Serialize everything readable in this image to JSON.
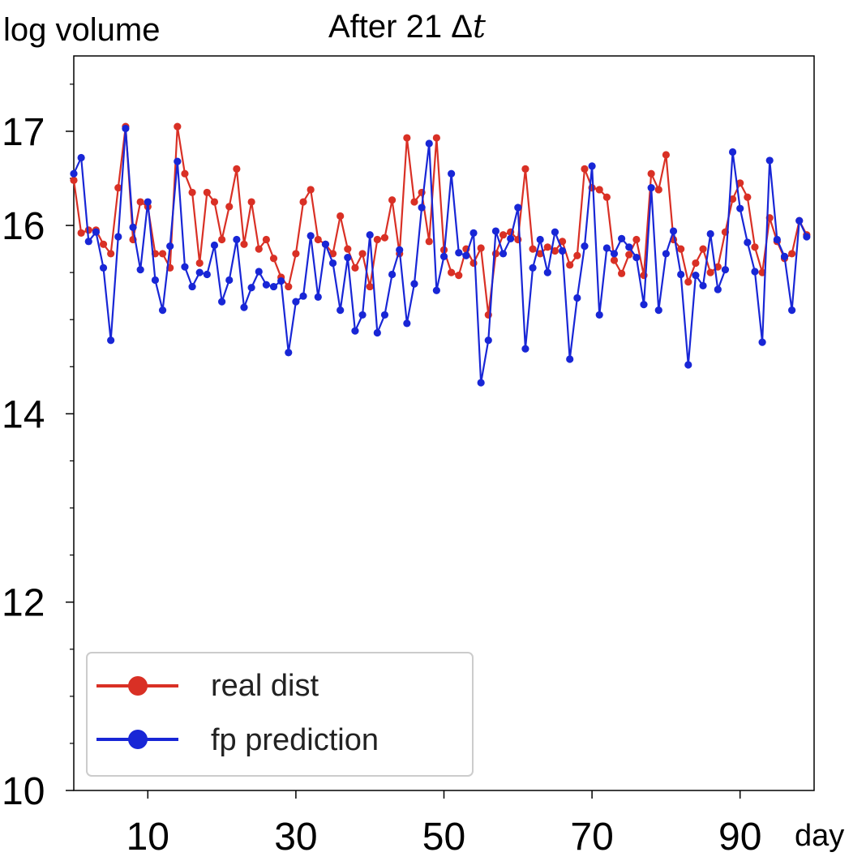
{
  "chart_data": {
    "type": "line",
    "title_prefix": "After 21 ",
    "title_symbol": "Δ",
    "title_var": "t",
    "ylabel": "log volume",
    "xlabel": "day",
    "xlim": [
      0,
      100
    ],
    "ylim": [
      10,
      17.8
    ],
    "xticks": [
      10,
      30,
      50,
      70,
      90
    ],
    "yticks": [
      10,
      12,
      14,
      16,
      17
    ],
    "yminor": [
      10.5,
      11,
      11.5,
      12.5,
      13,
      13.5,
      14.5,
      15,
      15.5,
      16.5,
      17.5
    ],
    "x": [
      0,
      1,
      2,
      3,
      4,
      5,
      6,
      7,
      8,
      9,
      10,
      11,
      12,
      13,
      14,
      15,
      16,
      17,
      18,
      19,
      20,
      21,
      22,
      23,
      24,
      25,
      26,
      27,
      28,
      29,
      30,
      31,
      32,
      33,
      34,
      35,
      36,
      37,
      38,
      39,
      40,
      41,
      42,
      43,
      44,
      45,
      46,
      47,
      48,
      49,
      50,
      51,
      52,
      53,
      54,
      55,
      56,
      57,
      58,
      59,
      60,
      61,
      62,
      63,
      64,
      65,
      66,
      67,
      68,
      69,
      70,
      71,
      72,
      73,
      74,
      75,
      76,
      77,
      78,
      79,
      80,
      81,
      82,
      83,
      84,
      85,
      86,
      87,
      88,
      89,
      90,
      91,
      92,
      93,
      94,
      95,
      96,
      97,
      98,
      99
    ],
    "series": [
      {
        "name": "real dist",
        "color": "#d93025",
        "values": [
          16.48,
          15.92,
          15.95,
          15.95,
          15.8,
          15.7,
          16.4,
          17.05,
          15.85,
          16.25,
          16.2,
          15.7,
          15.7,
          15.55,
          17.05,
          16.55,
          16.35,
          15.6,
          16.35,
          16.25,
          15.85,
          16.2,
          16.6,
          15.8,
          16.25,
          15.75,
          15.85,
          15.65,
          15.45,
          15.35,
          15.7,
          16.25,
          16.38,
          15.85,
          15.8,
          15.7,
          16.1,
          15.75,
          15.55,
          15.7,
          15.35,
          15.85,
          15.87,
          16.27,
          15.7,
          16.93,
          16.25,
          16.35,
          15.83,
          16.93,
          15.74,
          15.5,
          15.47,
          15.75,
          15.6,
          15.76,
          15.05,
          15.7,
          15.9,
          15.93,
          15.85,
          16.6,
          15.75,
          15.7,
          15.77,
          15.73,
          15.83,
          15.58,
          15.68,
          16.6,
          16.4,
          16.38,
          16.3,
          15.63,
          15.49,
          15.69,
          15.85,
          15.47,
          16.55,
          16.38,
          16.75,
          15.85,
          15.75,
          15.4,
          15.6,
          15.75,
          15.5,
          15.56,
          15.93,
          16.28,
          16.45,
          16.3,
          15.77,
          15.5,
          16.08,
          15.83,
          15.65,
          15.7,
          16.05,
          15.9
        ]
      },
      {
        "name": "fp prediction",
        "color": "#1826d6",
        "values": [
          16.55,
          16.72,
          15.83,
          15.93,
          15.55,
          14.78,
          15.88,
          17.03,
          15.98,
          15.53,
          16.25,
          15.42,
          15.1,
          15.78,
          16.68,
          15.56,
          15.35,
          15.5,
          15.48,
          15.79,
          15.19,
          15.42,
          15.85,
          15.13,
          15.34,
          15.51,
          15.37,
          15.35,
          15.41,
          14.65,
          15.19,
          15.25,
          15.89,
          15.24,
          15.8,
          15.6,
          15.1,
          15.66,
          14.88,
          15.05,
          15.9,
          14.86,
          15.05,
          15.48,
          15.74,
          14.96,
          15.38,
          16.19,
          16.87,
          15.31,
          15.67,
          16.55,
          15.71,
          15.68,
          15.92,
          14.33,
          14.78,
          15.94,
          15.7,
          15.86,
          16.19,
          14.69,
          15.55,
          15.85,
          15.5,
          15.93,
          15.73,
          14.58,
          15.23,
          15.78,
          16.63,
          15.05,
          15.76,
          15.7,
          15.86,
          15.77,
          15.66,
          15.16,
          16.4,
          15.1,
          15.7,
          15.94,
          15.48,
          14.52,
          15.47,
          15.36,
          15.91,
          15.32,
          15.53,
          16.78,
          16.18,
          15.82,
          15.51,
          14.76,
          16.69,
          15.85,
          15.67,
          15.1,
          16.05,
          15.88
        ]
      }
    ],
    "legend": {
      "placement": "bottom-left",
      "entries": [
        "real dist",
        "fp prediction"
      ]
    }
  }
}
